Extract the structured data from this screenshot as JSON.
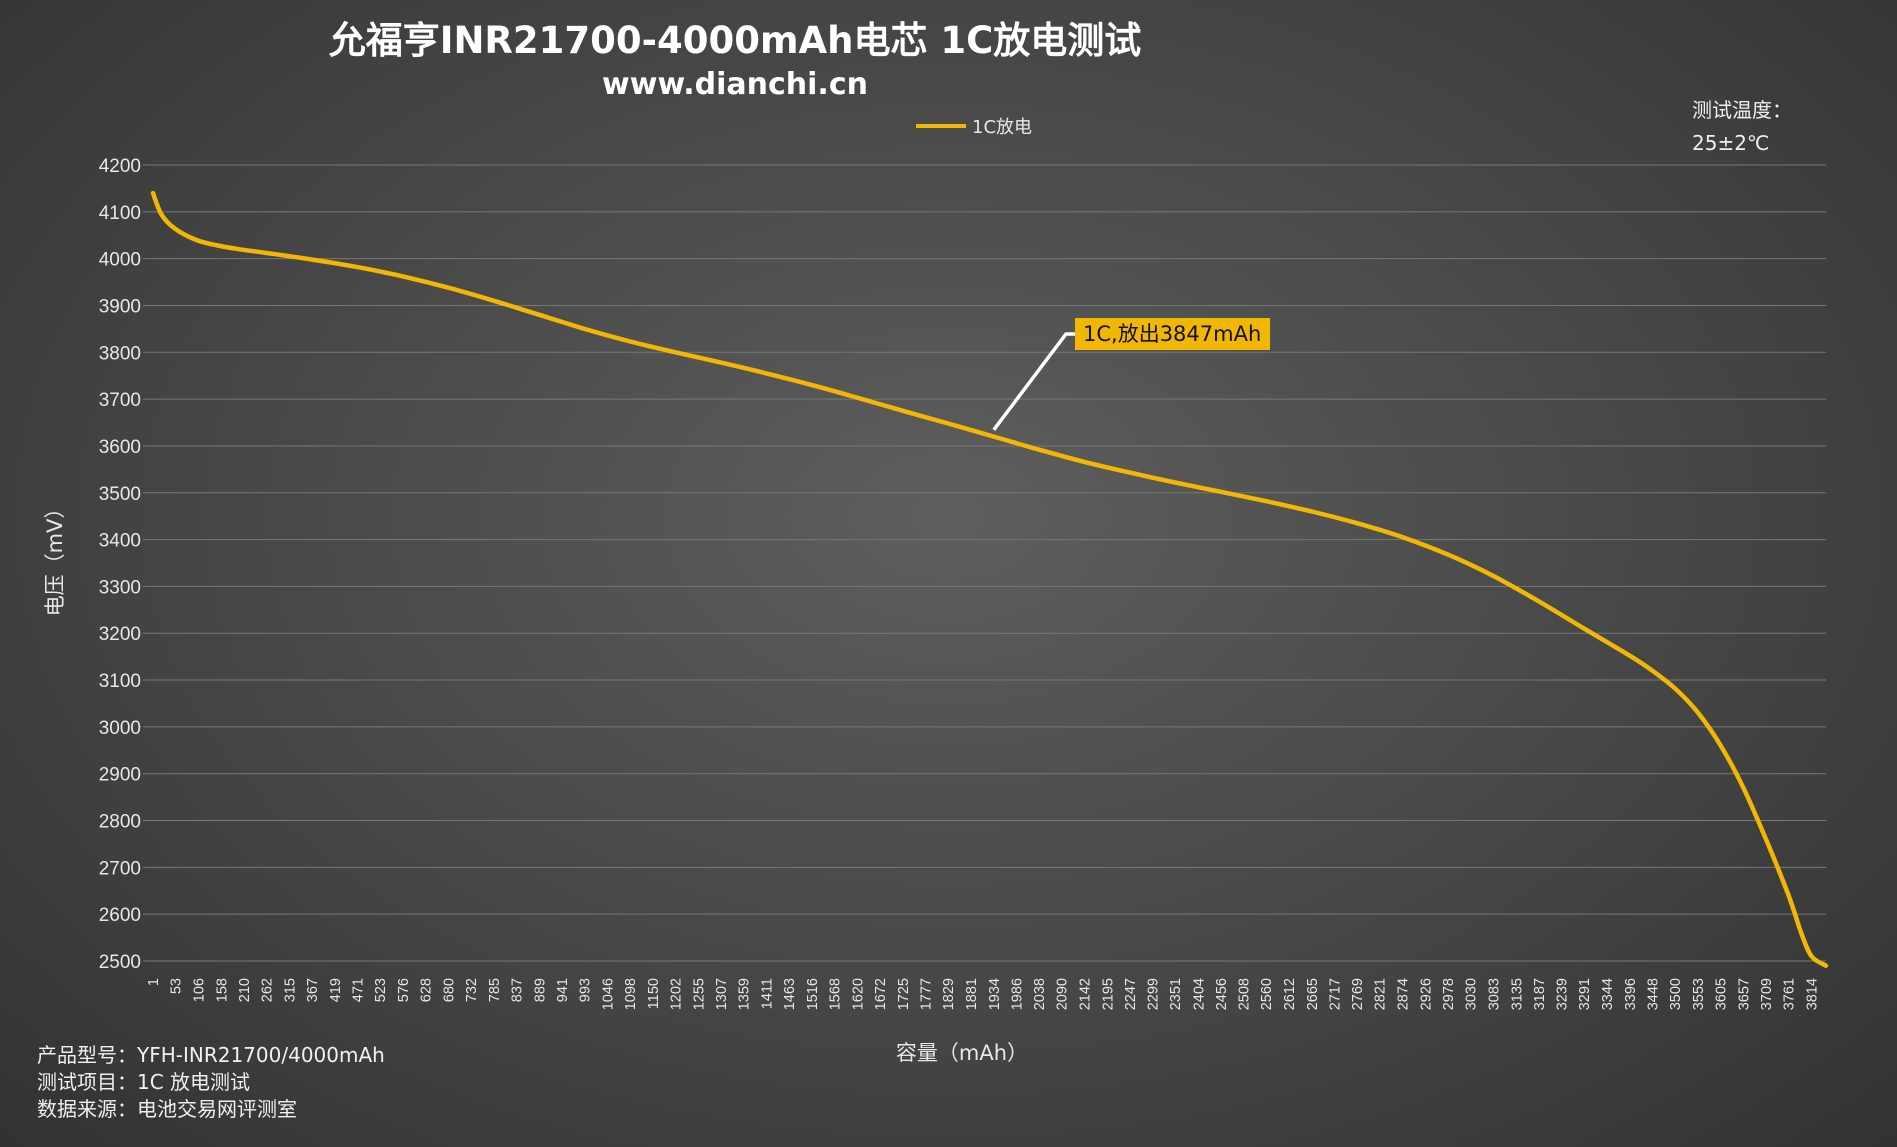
{
  "header": {
    "title": "允福亨INR21700-4000mAh电芯 1C放电测试",
    "subtitle": "www.dianchi.cn"
  },
  "temperature": {
    "label": "测试温度：",
    "value": "25±2℃"
  },
  "legend": {
    "label": "1C放电"
  },
  "annotation": {
    "text": "1C,放出3847mAh",
    "at_capacity": 1934,
    "at_voltage": 3626
  },
  "footer": {
    "model": "产品型号：YFH-INR21700/4000mAh",
    "item": "测试项目：1C 放电测试",
    "source": "数据来源：电池交易网评测室"
  },
  "colors": {
    "series": "#f2b705",
    "grid": "#777777"
  },
  "chart_data": {
    "type": "line",
    "xlabel": "容量（mAh）",
    "ylabel": "电压（mV）",
    "ylim": [
      2500,
      4200
    ],
    "yticks": [
      2500,
      2600,
      2700,
      2800,
      2900,
      3000,
      3100,
      3200,
      3300,
      3400,
      3500,
      3600,
      3700,
      3800,
      3900,
      4000,
      4100,
      4200
    ],
    "xticks": [
      1,
      53,
      106,
      158,
      210,
      262,
      315,
      367,
      419,
      471,
      523,
      576,
      628,
      680,
      732,
      785,
      837,
      889,
      941,
      993,
      1046,
      1098,
      1150,
      1202,
      1255,
      1307,
      1359,
      1411,
      1463,
      1516,
      1568,
      1620,
      1672,
      1725,
      1777,
      1829,
      1881,
      1934,
      1986,
      2038,
      2090,
      2142,
      2195,
      2247,
      2299,
      2351,
      2404,
      2456,
      2508,
      2560,
      2612,
      2665,
      2717,
      2769,
      2821,
      2874,
      2926,
      2978,
      3030,
      3083,
      3135,
      3187,
      3239,
      3291,
      3344,
      3396,
      3448,
      3500,
      3553,
      3605,
      3657,
      3709,
      3761,
      3814
    ],
    "xlim": [
      1,
      3847
    ],
    "grid": true,
    "legend_position": "top-center",
    "series": [
      {
        "name": "1C放电",
        "x": [
          1,
          20,
          50,
          100,
          150,
          200,
          262,
          367,
          471,
          576,
          680,
          785,
          889,
          993,
          1098,
          1202,
          1307,
          1411,
          1516,
          1620,
          1725,
          1829,
          1934,
          2038,
          2142,
          2247,
          2351,
          2456,
          2560,
          2665,
          2769,
          2874,
          2978,
          3083,
          3187,
          3291,
          3396,
          3448,
          3500,
          3553,
          3605,
          3657,
          3709,
          3761,
          3790,
          3814,
          3847
        ],
        "y": [
          4140,
          4095,
          4065,
          4040,
          4028,
          4020,
          4012,
          3998,
          3982,
          3962,
          3938,
          3910,
          3880,
          3850,
          3823,
          3800,
          3778,
          3755,
          3730,
          3703,
          3675,
          3648,
          3620,
          3592,
          3566,
          3543,
          3522,
          3502,
          3482,
          3460,
          3435,
          3405,
          3368,
          3322,
          3268,
          3210,
          3152,
          3120,
          3082,
          3030,
          2960,
          2870,
          2760,
          2640,
          2560,
          2510,
          2490
        ]
      }
    ]
  }
}
